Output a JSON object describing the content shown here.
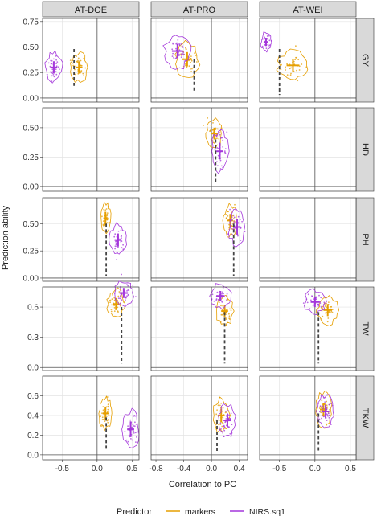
{
  "chart_data": {
    "type": "scatter",
    "xlabel": "Correlation to PC",
    "ylabel": "Prediction ability",
    "columns": [
      {
        "label": "AT-DOE",
        "xlim": [
          -0.78,
          0.6
        ],
        "xticks": [
          -0.5,
          0.0,
          0.5
        ],
        "xtick_labels": [
          "-0.5",
          "0.0",
          "0.5"
        ]
      },
      {
        "label": "AT-PRO",
        "xlim": [
          -0.87,
          0.52
        ],
        "xticks": [
          -0.8,
          -0.4,
          0.0,
          0.4
        ],
        "xtick_labels": [
          "-0.8",
          "-0.4",
          "0.0",
          "0.4"
        ]
      },
      {
        "label": "AT-WEI",
        "xlim": [
          -0.78,
          0.58
        ],
        "xticks": [
          -0.5,
          0.0,
          0.5
        ],
        "xtick_labels": [
          "-0.5",
          "0.0",
          "0.5"
        ]
      }
    ],
    "rows": [
      {
        "label": "GY",
        "ylim": [
          -0.04,
          0.78
        ],
        "yticks": [
          0.0,
          0.25,
          0.5,
          0.75
        ],
        "ytick_labels": [
          "0.00",
          "0.25",
          "0.50",
          "0.75"
        ]
      },
      {
        "label": "HD",
        "ylim": [
          -0.04,
          0.67
        ],
        "yticks": [
          0.0,
          0.25,
          0.5
        ],
        "ytick_labels": [
          "0.00",
          "0.25",
          "0.50"
        ]
      },
      {
        "label": "PH",
        "ylim": [
          -0.03,
          0.74
        ],
        "yticks": [
          0.0,
          0.25,
          0.5
        ],
        "ytick_labels": [
          "0.00",
          "0.25",
          "0.50"
        ]
      },
      {
        "label": "TW",
        "ylim": [
          -0.03,
          0.8
        ],
        "yticks": [
          0.0,
          0.3,
          0.6
        ],
        "ytick_labels": [
          "0.0",
          "0.3",
          "0.6"
        ]
      },
      {
        "label": "TKW",
        "ylim": [
          -0.05,
          0.8
        ],
        "yticks": [
          0.0,
          0.2,
          0.4,
          0.6
        ],
        "ytick_labels": [
          "0.0",
          "0.2",
          "0.4",
          "0.6"
        ]
      }
    ],
    "legend": {
      "title": "Predictor",
      "position": "bottom"
    },
    "series": [
      {
        "name": "markers",
        "color": "#E69F00"
      },
      {
        "name": "NIRS.sq1",
        "color": "#A437DB"
      }
    ],
    "grid": true,
    "reference_line_x": 0.0,
    "panels": [
      {
        "col": 0,
        "row": 0,
        "markers": {
          "x": -0.26,
          "y": 0.3,
          "sx": 0.05,
          "sy": 0.06
        },
        "nirs": {
          "x": -0.62,
          "y": 0.3,
          "sx": 0.05,
          "sy": 0.06
        },
        "drop_x": -0.33,
        "drop_from": 0.48,
        "drop_to": 0.12
      },
      {
        "col": 1,
        "row": 0,
        "markers": {
          "x": -0.35,
          "y": 0.38,
          "sx": 0.07,
          "sy": 0.07
        },
        "nirs": {
          "x": -0.49,
          "y": 0.46,
          "sx": 0.08,
          "sy": 0.07
        },
        "drop_x": -0.25,
        "drop_from": 0.38,
        "drop_to": 0.05
      },
      {
        "col": 2,
        "row": 0,
        "markers": {
          "x": -0.31,
          "y": 0.32,
          "sx": 0.09,
          "sy": 0.06
        },
        "nirs": {
          "x": -0.69,
          "y": 0.55,
          "sx": 0.03,
          "sy": 0.04
        },
        "drop_x": -0.5,
        "drop_from": 0.48,
        "drop_to": 0.03
      },
      {
        "col": 0,
        "row": 1,
        "markers": null,
        "nirs": null
      },
      {
        "col": 1,
        "row": 1,
        "markers": {
          "x": 0.04,
          "y": 0.45,
          "sx": 0.05,
          "sy": 0.05
        },
        "nirs": {
          "x": 0.12,
          "y": 0.3,
          "sx": 0.05,
          "sy": 0.07
        },
        "drop_x": 0.06,
        "drop_from": 0.4,
        "drop_to": 0.02
      },
      {
        "col": 2,
        "row": 1,
        "markers": null,
        "nirs": null
      },
      {
        "col": 0,
        "row": 2,
        "markers": {
          "x": 0.12,
          "y": 0.55,
          "sx": 0.03,
          "sy": 0.06
        },
        "nirs": {
          "x": 0.3,
          "y": 0.35,
          "sx": 0.05,
          "sy": 0.06
        },
        "drop_x": 0.13,
        "drop_from": 0.5,
        "drop_to": 0.02
      },
      {
        "col": 1,
        "row": 2,
        "markers": {
          "x": 0.27,
          "y": 0.53,
          "sx": 0.04,
          "sy": 0.06
        },
        "nirs": {
          "x": 0.37,
          "y": 0.47,
          "sx": 0.05,
          "sy": 0.07
        },
        "drop_x": 0.32,
        "drop_from": 0.5,
        "drop_to": 0.02
      },
      {
        "col": 2,
        "row": 2,
        "markers": null,
        "nirs": null
      },
      {
        "col": 0,
        "row": 3,
        "markers": {
          "x": 0.27,
          "y": 0.63,
          "sx": 0.05,
          "sy": 0.06
        },
        "nirs": {
          "x": 0.38,
          "y": 0.74,
          "sx": 0.06,
          "sy": 0.05
        },
        "drop_x": 0.35,
        "drop_from": 0.6,
        "drop_to": 0.04
      },
      {
        "col": 1,
        "row": 3,
        "markers": {
          "x": 0.19,
          "y": 0.56,
          "sx": 0.05,
          "sy": 0.06
        },
        "nirs": {
          "x": 0.13,
          "y": 0.71,
          "sx": 0.06,
          "sy": 0.05
        },
        "drop_x": 0.19,
        "drop_from": 0.55,
        "drop_to": 0.04
      },
      {
        "col": 2,
        "row": 3,
        "markers": {
          "x": 0.18,
          "y": 0.57,
          "sx": 0.06,
          "sy": 0.06
        },
        "nirs": {
          "x": 0.0,
          "y": 0.65,
          "sx": 0.06,
          "sy": 0.05
        },
        "drop_x": 0.05,
        "drop_from": 0.55,
        "drop_to": 0.04
      },
      {
        "col": 0,
        "row": 4,
        "markers": {
          "x": 0.12,
          "y": 0.42,
          "sx": 0.04,
          "sy": 0.07
        },
        "nirs": {
          "x": 0.48,
          "y": 0.26,
          "sx": 0.05,
          "sy": 0.08
        },
        "drop_x": 0.13,
        "drop_from": 0.38,
        "drop_to": 0.04
      },
      {
        "col": 1,
        "row": 4,
        "markers": {
          "x": 0.14,
          "y": 0.4,
          "sx": 0.05,
          "sy": 0.07
        },
        "nirs": {
          "x": 0.23,
          "y": 0.35,
          "sx": 0.05,
          "sy": 0.07
        },
        "drop_x": 0.08,
        "drop_from": 0.35,
        "drop_to": 0.04
      },
      {
        "col": 2,
        "row": 4,
        "markers": {
          "x": 0.12,
          "y": 0.46,
          "sx": 0.05,
          "sy": 0.07
        },
        "nirs": {
          "x": 0.15,
          "y": 0.44,
          "sx": 0.05,
          "sy": 0.07
        },
        "drop_x": 0.05,
        "drop_from": 0.42,
        "drop_to": 0.04
      }
    ]
  }
}
